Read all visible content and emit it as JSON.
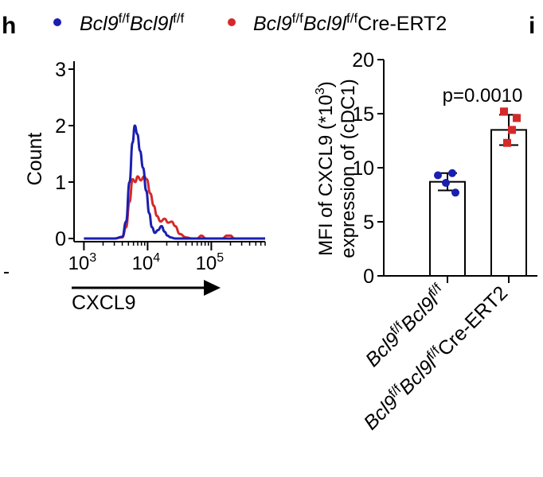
{
  "panel_labels": {
    "left": "h",
    "right": "i"
  },
  "legend": [
    {
      "color": "#1a1fb0",
      "parts": [
        {
          "t": "Bcl9",
          "italic": true
        },
        {
          "t": "f/f",
          "sup": true
        },
        {
          "t": "Bcl9l",
          "italic": true
        },
        {
          "t": "f/f",
          "sup": true
        }
      ]
    },
    {
      "color": "#d42a2a",
      "parts": [
        {
          "t": "Bcl9",
          "italic": true
        },
        {
          "t": "f/f",
          "sup": true
        },
        {
          "t": "Bcl9l",
          "italic": true
        },
        {
          "t": "f/f",
          "sup": true
        },
        {
          "t": "Cre-ERT2",
          "italic": false
        }
      ]
    }
  ],
  "chart_data": [
    {
      "type": "line",
      "ylabel": "Count",
      "xlabel": "CXCL9",
      "y_ticks": [
        "0",
        "1",
        "2",
        "3"
      ],
      "ylim": [
        0,
        3
      ],
      "x_ticks": [
        {
          "base": "10",
          "exp": "3",
          "value": 1000
        },
        {
          "base": "10",
          "exp": "4",
          "value": 10000
        },
        {
          "base": "10",
          "exp": "5",
          "value": 100000
        }
      ],
      "x_scale": "log",
      "xlim": [
        700,
        700000
      ],
      "colors": [
        "#1a1fb0",
        "#d42a2a"
      ],
      "series": [
        {
          "x": [
            1000,
            3000,
            4000,
            4600,
            5200,
            5800,
            6300,
            6900,
            7600,
            8500,
            9500,
            10600,
            11700,
            13000,
            14600,
            16500,
            18500,
            20500,
            23000,
            27000,
            32000,
            45000,
            100000,
            700000
          ],
          "y": [
            0,
            0,
            0.03,
            0.3,
            1.0,
            1.7,
            2.0,
            1.85,
            1.55,
            1.25,
            0.85,
            0.45,
            0.2,
            0.1,
            0.15,
            0.22,
            0.12,
            0.05,
            0.02,
            0,
            0,
            0,
            0,
            0
          ]
        },
        {
          "x": [
            1000,
            3000,
            4000,
            4600,
            5200,
            5800,
            6400,
            7000,
            7800,
            8800,
            9700,
            11000,
            12500,
            14000,
            16000,
            18500,
            21000,
            24000,
            27000,
            32000,
            40000,
            50000,
            60000,
            70000,
            82000,
            100000,
            150000,
            175000,
            200000,
            230000,
            280000,
            700000
          ],
          "y": [
            0,
            0,
            0.02,
            0.2,
            0.65,
            1.05,
            1.0,
            1.1,
            1.03,
            1.1,
            1.05,
            0.8,
            0.58,
            0.4,
            0.3,
            0.35,
            0.28,
            0.3,
            0.22,
            0.08,
            0.02,
            0,
            0,
            0.05,
            0,
            0,
            0,
            0.05,
            0.05,
            0,
            0,
            0
          ]
        }
      ]
    },
    {
      "type": "bar",
      "ylabel_line1": "MFI of CXCL9 (*10",
      "ylabel_line1_sup": "3",
      "ylabel_line1_end": ")",
      "ylabel_line2": "expression of (cDC1)",
      "y_ticks": [
        "0",
        "5",
        "10",
        "15",
        "20"
      ],
      "ylim": [
        0,
        20
      ],
      "annotation": "p=0.0010",
      "categories": [
        [
          {
            "t": "Bcl9",
            "italic": true
          },
          {
            "t": "f/f",
            "sup": true
          },
          {
            "t": "Bcl9l",
            "italic": true
          },
          {
            "t": "f/f",
            "sup": true
          }
        ],
        [
          {
            "t": "Bcl9",
            "italic": true
          },
          {
            "t": "f/f",
            "sup": true
          },
          {
            "t": "Bcl9l",
            "italic": true
          },
          {
            "t": "f/f",
            "sup": true
          },
          {
            "t": "Cre-ERT2",
            "italic": false
          }
        ]
      ],
      "values": [
        8.7,
        13.5
      ],
      "errors": [
        0.8,
        1.4
      ],
      "colors": [
        "#1a1fb0",
        "#d42a2a"
      ],
      "points": [
        [
          9.3,
          9.5,
          8.6,
          7.7
        ],
        [
          15.2,
          14.6,
          13.5,
          12.3
        ]
      ]
    }
  ]
}
